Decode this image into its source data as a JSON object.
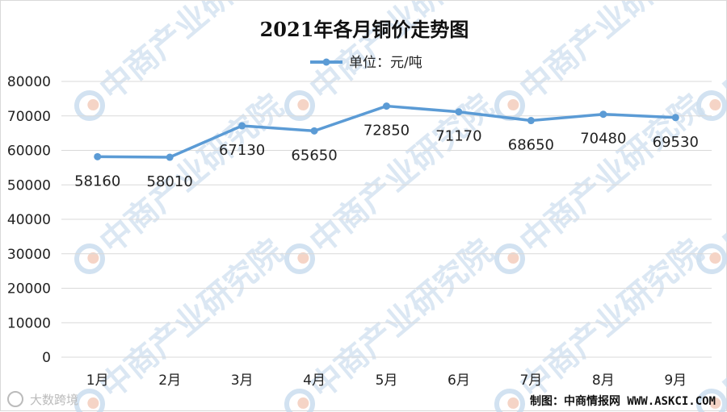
{
  "chart_data": {
    "type": "line",
    "title": "2021年各月铜价走势图",
    "categories": [
      "1月",
      "2月",
      "3月",
      "4月",
      "5月",
      "6月",
      "7月",
      "8月",
      "9月"
    ],
    "series": [
      {
        "name": "单位：元/吨",
        "values": [
          58160,
          58010,
          67130,
          65650,
          72850,
          71170,
          68650,
          70480,
          69530
        ],
        "color": "#5b9bd5"
      }
    ],
    "data_labels": [
      "58160",
      "58010",
      "67130",
      "65650",
      "72850",
      "71170",
      "68650",
      "70480",
      "69530"
    ],
    "ylim": [
      0,
      80000
    ],
    "yticks": [
      "0",
      "10000",
      "20000",
      "30000",
      "40000",
      "50000",
      "60000",
      "70000",
      "80000"
    ],
    "grid": true,
    "legend": "top-center"
  },
  "source_note": "制图：中商情报网 WWW.ASKCI.COM",
  "watermark": "中商产业研究院",
  "bottom_logo": "大数跨境",
  "colors": {
    "line": "#5b9bd5",
    "grid": "#d9d9d9",
    "text": "#222222"
  }
}
